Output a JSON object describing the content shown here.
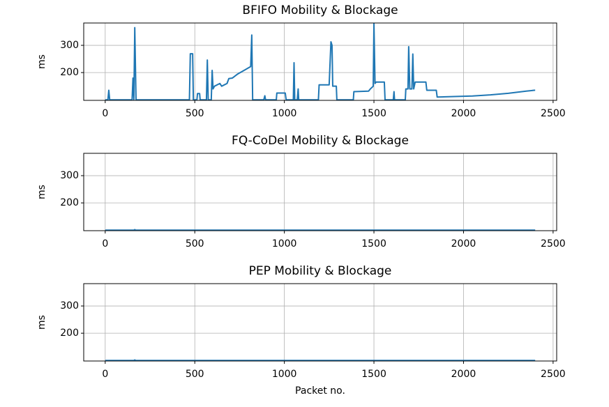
{
  "chart_data": [
    {
      "type": "line",
      "title": "BFIFO Mobility & Blockage",
      "ylabel": "ms",
      "color": "#1f77b4",
      "grid": true,
      "xlim": [
        -120,
        2520
      ],
      "ylim": [
        98,
        382
      ],
      "xticks": [
        0,
        500,
        1000,
        1500,
        2000,
        2500
      ],
      "yticks": [
        200,
        300
      ],
      "x": [
        0,
        15,
        20,
        25,
        150,
        155,
        160,
        165,
        172,
        470,
        475,
        488,
        492,
        512,
        515,
        527,
        530,
        565,
        570,
        575,
        592,
        597,
        602,
        610,
        640,
        650,
        680,
        690,
        710,
        740,
        780,
        812,
        818,
        823,
        885,
        891,
        895,
        955,
        958,
        1005,
        1010,
        1050,
        1054,
        1058,
        1072,
        1077,
        1080,
        1190,
        1194,
        1240,
        1250,
        1260,
        1266,
        1270,
        1290,
        1293,
        1385,
        1388,
        1470,
        1480,
        1496,
        1500,
        1506,
        1512,
        1558,
        1562,
        1608,
        1612,
        1615,
        1675,
        1678,
        1690,
        1694,
        1700,
        1712,
        1717,
        1722,
        1730,
        1790,
        1795,
        1848,
        1853,
        1950,
        2050,
        2150,
        2250,
        2350,
        2395,
        2400
      ],
      "values": [
        100,
        100,
        135,
        100,
        100,
        180,
        100,
        365,
        100,
        100,
        269,
        269,
        100,
        100,
        123,
        123,
        100,
        100,
        246,
        100,
        100,
        208,
        140,
        150,
        160,
        150,
        160,
        178,
        180,
        195,
        210,
        222,
        338,
        100,
        100,
        115,
        100,
        100,
        125,
        125,
        100,
        100,
        236,
        100,
        100,
        140,
        100,
        100,
        155,
        155,
        155,
        313,
        300,
        150,
        150,
        100,
        100,
        130,
        132,
        140,
        150,
        380,
        160,
        165,
        165,
        100,
        100,
        130,
        100,
        100,
        140,
        140,
        295,
        140,
        140,
        268,
        140,
        165,
        165,
        135,
        135,
        110,
        112,
        114,
        118,
        124,
        132,
        135,
        135
      ]
    },
    {
      "type": "line",
      "title": "FQ-CoDel Mobility & Blockage",
      "ylabel": "ms",
      "color": "#1f77b4",
      "grid": true,
      "xlim": [
        -120,
        2520
      ],
      "ylim": [
        98,
        382
      ],
      "xticks": [
        0,
        500,
        1000,
        1500,
        2000,
        2500
      ],
      "yticks": [
        200,
        300
      ],
      "x": [
        0,
        160,
        165,
        170,
        2400
      ],
      "values": [
        100,
        100,
        102,
        100,
        100
      ]
    },
    {
      "type": "line",
      "title": "PEP Mobility & Blockage",
      "ylabel": "ms",
      "xlabel": "Packet no.",
      "color": "#1f77b4",
      "grid": true,
      "xlim": [
        -120,
        2520
      ],
      "ylim": [
        98,
        382
      ],
      "xticks": [
        0,
        500,
        1000,
        1500,
        2000,
        2500
      ],
      "yticks": [
        200,
        300
      ],
      "x": [
        0,
        160,
        165,
        170,
        2400
      ],
      "values": [
        100,
        100,
        102,
        100,
        100
      ]
    }
  ]
}
